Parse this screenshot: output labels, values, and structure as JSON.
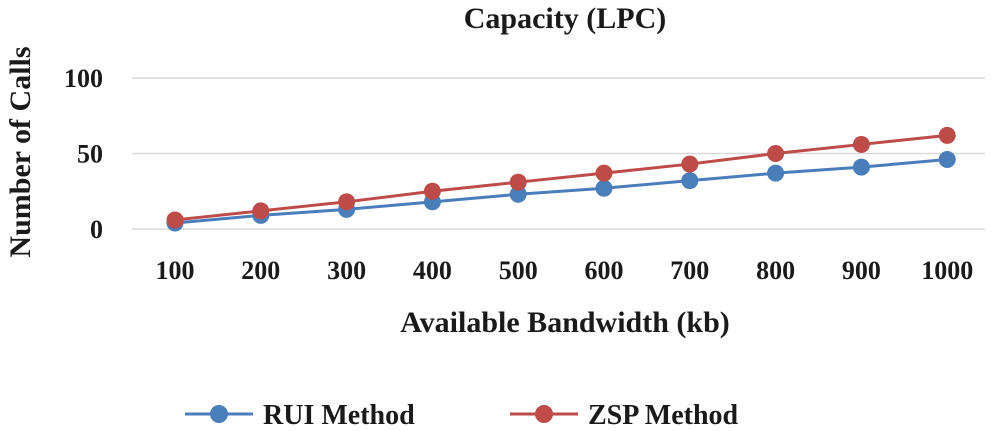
{
  "chart_data": {
    "type": "line",
    "title": "Capacity (LPC)",
    "xlabel": "Available Bandwidth (kb)",
    "ylabel": "Number of Calls",
    "categories": [
      "100",
      "200",
      "300",
      "400",
      "500",
      "600",
      "700",
      "800",
      "900",
      "1000"
    ],
    "ylim": [
      0,
      100
    ],
    "yticks": [
      "0",
      "50",
      "100"
    ],
    "grid": true,
    "legend_position": "bottom",
    "series": [
      {
        "name": "RUI Method",
        "color": "#4A7EBB",
        "values": [
          4,
          9,
          13,
          18,
          23,
          27,
          32,
          37,
          41,
          46
        ]
      },
      {
        "name": "ZSP Method",
        "color": "#BE4B48",
        "values": [
          6,
          12,
          18,
          25,
          31,
          37,
          43,
          50,
          56,
          62
        ]
      }
    ]
  }
}
